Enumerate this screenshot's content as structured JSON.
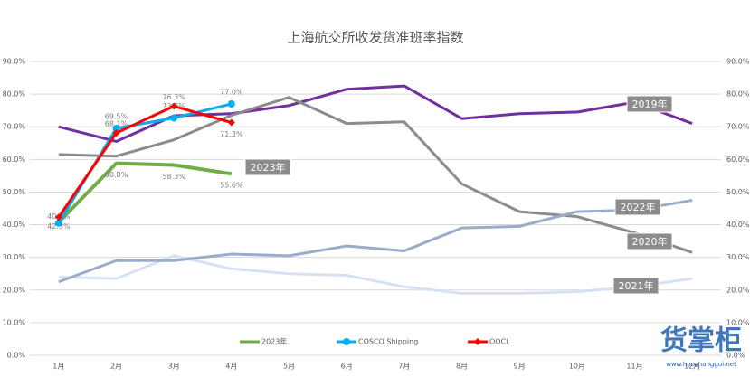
{
  "chart_data": {
    "type": "line",
    "title": "上海航交所收发货准班率指数",
    "categories": [
      "1月",
      "2月",
      "3月",
      "4月",
      "5月",
      "6月",
      "7月",
      "8月",
      "9月",
      "10月",
      "11月",
      "12月"
    ],
    "ylim": [
      0,
      90
    ],
    "yticks": [
      {
        "value": 0,
        "label": "0.0%"
      },
      {
        "value": 10,
        "label": "10.0%"
      },
      {
        "value": 20,
        "label": "20.0%"
      },
      {
        "value": 30,
        "label": "30.0%"
      },
      {
        "value": 40,
        "label": "40.0%"
      },
      {
        "value": 50,
        "label": "50.0%"
      },
      {
        "value": 60,
        "label": "60.0%"
      },
      {
        "value": 70,
        "label": "70.0%"
      },
      {
        "value": 80,
        "label": "80.0%"
      },
      {
        "value": 90,
        "label": "90.0%"
      }
    ],
    "y2lim": [
      0,
      90
    ],
    "y2ticks": [
      {
        "value": 0,
        "label": "0.0%"
      },
      {
        "value": 10,
        "label": "10.0%"
      },
      {
        "value": 20,
        "label": "20.0%"
      },
      {
        "value": 30,
        "label": "30.0%"
      },
      {
        "value": 40,
        "label": "40.0%"
      },
      {
        "value": 50,
        "label": "50.0%"
      },
      {
        "value": 60,
        "label": "60.0%"
      },
      {
        "value": 70,
        "label": "70.0%"
      },
      {
        "value": 80,
        "label": "80.0%"
      },
      {
        "value": 90,
        "label": "90.0%"
      }
    ],
    "grid": true,
    "series": [
      {
        "name": "2019年",
        "color": "#7030a0",
        "legend": false,
        "values": [
          70.0,
          65.5,
          73.4,
          74.0,
          76.5,
          81.5,
          82.5,
          72.5,
          74.0,
          74.5,
          77.5,
          71.0
        ]
      },
      {
        "name": "2020年",
        "color": "#8c8c8c",
        "legend": false,
        "values": [
          61.5,
          61.0,
          66.0,
          73.5,
          79.0,
          71.0,
          71.5,
          52.5,
          44.0,
          42.5,
          37.5,
          31.5
        ]
      },
      {
        "name": "2021年",
        "color": "#d6e2f3",
        "legend": false,
        "values": [
          24.0,
          23.5,
          30.5,
          26.5,
          25.0,
          24.5,
          21.0,
          19.0,
          19.0,
          19.5,
          21.0,
          23.5
        ]
      },
      {
        "name": "2022年",
        "color": "#9aadc8",
        "legend": false,
        "values": [
          22.5,
          29.0,
          29.0,
          31.0,
          30.5,
          33.5,
          32.0,
          39.0,
          39.5,
          44.0,
          44.5,
          47.5
        ]
      },
      {
        "name": "2023年",
        "color": "#70ad47",
        "legend": true,
        "values": [
          40.8,
          58.8,
          58.3,
          55.6,
          null,
          null,
          null,
          null,
          null,
          null,
          null,
          null
        ],
        "value_labels": [
          "40.8%",
          "58.8%",
          "58.3%",
          "55.6%",
          null,
          null,
          null,
          null,
          null,
          null,
          null,
          null
        ]
      },
      {
        "name": "COSCO Shipping",
        "color": "#00b0f0",
        "legend": true,
        "marker": "circle",
        "values": [
          40.5,
          69.5,
          72.7,
          77.0,
          null,
          null,
          null,
          null,
          null,
          null,
          null,
          null
        ],
        "value_labels": [
          null,
          "69.5%",
          "72.7%",
          "77.0%",
          null,
          null,
          null,
          null,
          null,
          null,
          null,
          null
        ]
      },
      {
        "name": "OOCL",
        "color": "#ff0000",
        "legend": true,
        "marker": "diamond",
        "values": [
          42.3,
          68.1,
          76.3,
          71.3,
          null,
          null,
          null,
          null,
          null,
          null,
          null,
          null
        ],
        "value_labels": [
          "42.3%",
          "68.1%",
          "76.3%",
          "71.3%",
          null,
          null,
          null,
          null,
          null,
          null,
          null,
          null
        ]
      }
    ],
    "watermark": "货掌柜",
    "watermark_url": "www.huozhanggui.net"
  }
}
